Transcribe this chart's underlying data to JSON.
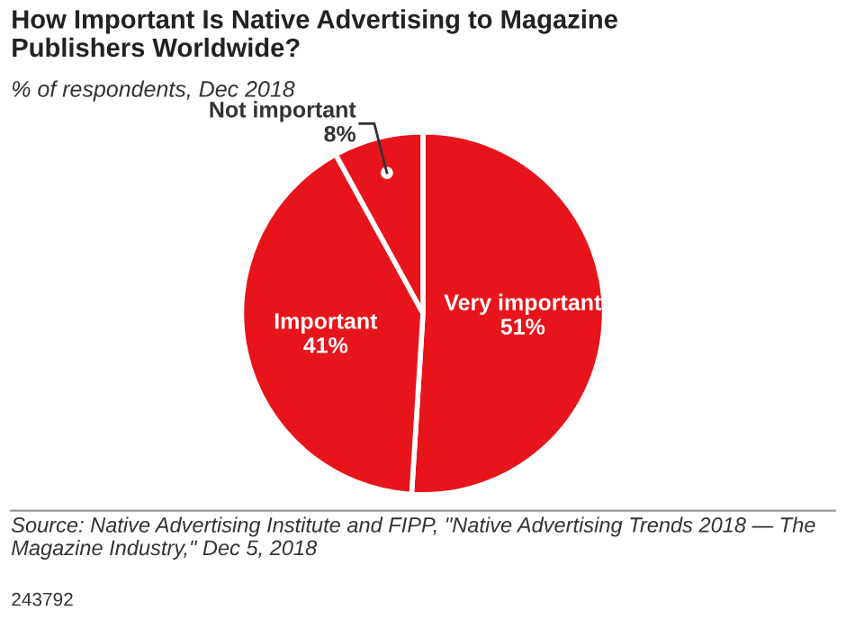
{
  "chart_data": {
    "type": "pie",
    "title": "How Important Is Native Advertising to Magazine\nPublishers Worldwide?",
    "subtitle": "% of respondents, Dec 2018",
    "categories": [
      "Very important",
      "Important",
      "Not important"
    ],
    "values": [
      51,
      41,
      8
    ],
    "colors": [
      "#e8141b",
      "#e8141b",
      "#e8141b"
    ],
    "data_labels": true,
    "value_labels": [
      "51%",
      "41%",
      "8%"
    ],
    "annotations": [
      "Source: Native Advertising Institute and FIPP, \"Native Advertising Trends 2018 — The Magazine Industry,\" Dec 5, 2018",
      "243792"
    ]
  }
}
